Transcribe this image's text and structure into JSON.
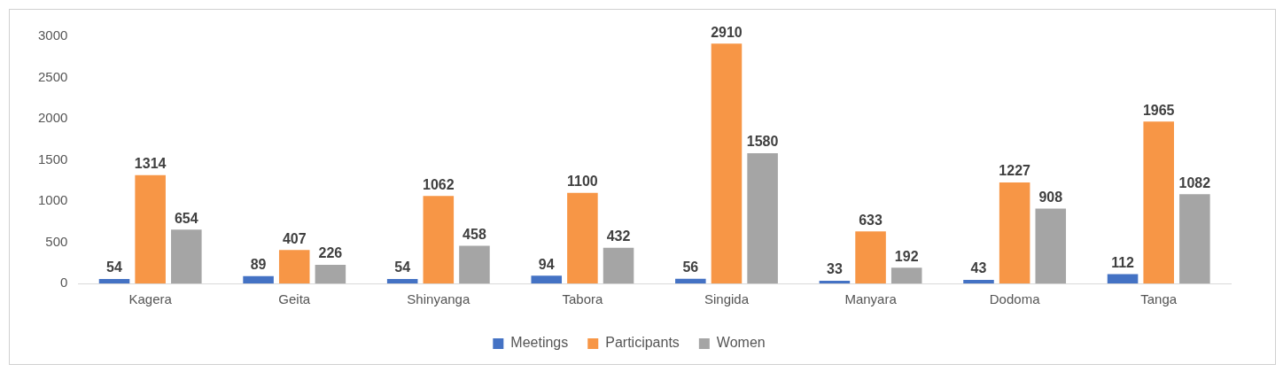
{
  "chart_data": {
    "type": "bar",
    "categories": [
      "Kagera",
      "Geita",
      "Shinyanga",
      "Tabora",
      "Singida",
      "Manyara",
      "Dodoma",
      "Tanga"
    ],
    "series": [
      {
        "name": "Meetings",
        "color": "#4472c4",
        "values": [
          54,
          89,
          54,
          94,
          56,
          33,
          43,
          112
        ]
      },
      {
        "name": "Participants",
        "color": "#f79646",
        "values": [
          1314,
          407,
          1062,
          1100,
          2910,
          633,
          1227,
          1965
        ]
      },
      {
        "name": "Women",
        "color": "#a5a5a5",
        "values": [
          654,
          226,
          458,
          432,
          1580,
          192,
          908,
          1082
        ]
      }
    ],
    "ylim": [
      0,
      3000
    ],
    "yticks": [
      0,
      500,
      1000,
      1500,
      2000,
      2500,
      3000
    ],
    "grid": false,
    "legend": "bottom",
    "data_labels": true
  }
}
